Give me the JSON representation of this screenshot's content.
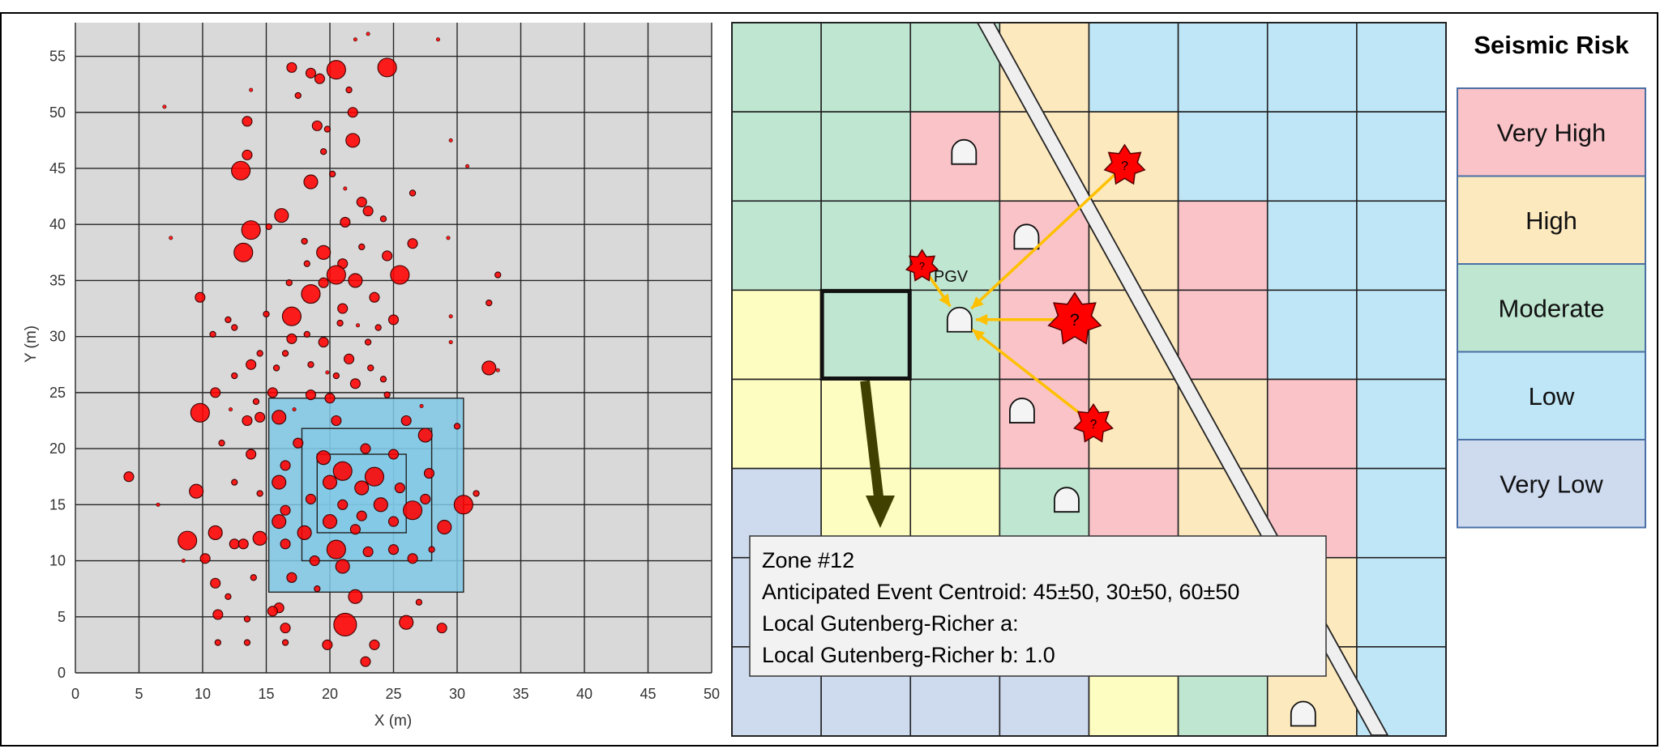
{
  "scatter": {
    "xlabel": "X (m)",
    "ylabel": "Y (m)",
    "xlim": [
      0,
      50
    ],
    "ylim": [
      0,
      58
    ],
    "xticks": [
      0,
      5,
      10,
      15,
      20,
      25,
      30,
      35,
      40,
      45,
      50
    ],
    "yticks": [
      0,
      5,
      10,
      15,
      20,
      25,
      30,
      35,
      40,
      45,
      50,
      55
    ],
    "grid_step": 5,
    "background": "#d9d9d9",
    "marker_color": "#ff0000",
    "overlay_color": "#7fc8e6",
    "overlay_boxes": [
      {
        "x0": 15.2,
        "x1": 30.5,
        "y0": 7.2,
        "y1": 24.5
      },
      {
        "x0": 17.8,
        "x1": 28.0,
        "y0": 10.0,
        "y1": 21.8
      },
      {
        "x0": 19.0,
        "x1": 26.0,
        "y0": 12.5,
        "y1": 19.5
      }
    ]
  },
  "chart_data": {
    "type": "scatter",
    "title": "",
    "xlabel": "X (m)",
    "ylabel": "Y (m)",
    "xlim": [
      0,
      50
    ],
    "ylim": [
      0,
      58
    ],
    "grid": true,
    "points": [
      {
        "x": 17,
        "y": 54,
        "s": 3
      },
      {
        "x": 20.5,
        "y": 53.8,
        "s": 5
      },
      {
        "x": 24.5,
        "y": 54,
        "s": 5
      },
      {
        "x": 18.5,
        "y": 53.5,
        "s": 3
      },
      {
        "x": 19.2,
        "y": 53,
        "s": 3
      },
      {
        "x": 23,
        "y": 57,
        "s": 1
      },
      {
        "x": 22,
        "y": 56.5,
        "s": 1
      },
      {
        "x": 28.5,
        "y": 56.5,
        "s": 1
      },
      {
        "x": 21.5,
        "y": 52,
        "s": 2
      },
      {
        "x": 17.5,
        "y": 51.5,
        "s": 2
      },
      {
        "x": 21.8,
        "y": 50,
        "s": 3
      },
      {
        "x": 13.5,
        "y": 49.2,
        "s": 3
      },
      {
        "x": 19,
        "y": 48.8,
        "s": 3
      },
      {
        "x": 19.8,
        "y": 48.5,
        "s": 2
      },
      {
        "x": 21.8,
        "y": 47.5,
        "s": 4
      },
      {
        "x": 19.5,
        "y": 46.5,
        "s": 2
      },
      {
        "x": 13.5,
        "y": 46.2,
        "s": 3
      },
      {
        "x": 13,
        "y": 44.8,
        "s": 5
      },
      {
        "x": 18.5,
        "y": 43.8,
        "s": 4
      },
      {
        "x": 26.5,
        "y": 42.8,
        "s": 2
      },
      {
        "x": 22.5,
        "y": 42,
        "s": 3
      },
      {
        "x": 23,
        "y": 41.2,
        "s": 3
      },
      {
        "x": 16.2,
        "y": 40.8,
        "s": 4
      },
      {
        "x": 21.2,
        "y": 40.2,
        "s": 3
      },
      {
        "x": 13.8,
        "y": 39.5,
        "s": 5
      },
      {
        "x": 15.2,
        "y": 39.8,
        "s": 2
      },
      {
        "x": 18,
        "y": 38.5,
        "s": 2
      },
      {
        "x": 26.5,
        "y": 38.3,
        "s": 3
      },
      {
        "x": 13.2,
        "y": 37.5,
        "s": 5
      },
      {
        "x": 19.5,
        "y": 37.5,
        "s": 4
      },
      {
        "x": 24.5,
        "y": 37.2,
        "s": 3
      },
      {
        "x": 21,
        "y": 36.5,
        "s": 3
      },
      {
        "x": 20.5,
        "y": 35.5,
        "s": 5
      },
      {
        "x": 25.5,
        "y": 35.5,
        "s": 5
      },
      {
        "x": 22,
        "y": 35,
        "s": 4
      },
      {
        "x": 19.5,
        "y": 34.8,
        "s": 3
      },
      {
        "x": 9.8,
        "y": 33.5,
        "s": 3
      },
      {
        "x": 18.5,
        "y": 33.8,
        "s": 5
      },
      {
        "x": 23.5,
        "y": 33.5,
        "s": 3
      },
      {
        "x": 32.5,
        "y": 33,
        "s": 2
      },
      {
        "x": 21,
        "y": 32.5,
        "s": 3
      },
      {
        "x": 15,
        "y": 32,
        "s": 2
      },
      {
        "x": 17,
        "y": 31.8,
        "s": 5
      },
      {
        "x": 12,
        "y": 31.5,
        "s": 2
      },
      {
        "x": 25,
        "y": 31.5,
        "s": 3
      },
      {
        "x": 12.5,
        "y": 30.8,
        "s": 2
      },
      {
        "x": 10.8,
        "y": 30.2,
        "s": 2
      },
      {
        "x": 17,
        "y": 29.8,
        "s": 3
      },
      {
        "x": 19.5,
        "y": 29.5,
        "s": 3
      },
      {
        "x": 23,
        "y": 29.5,
        "s": 2
      },
      {
        "x": 14.5,
        "y": 28.5,
        "s": 2
      },
      {
        "x": 16.5,
        "y": 28.5,
        "s": 2
      },
      {
        "x": 21.5,
        "y": 28,
        "s": 3
      },
      {
        "x": 13.8,
        "y": 27.5,
        "s": 3
      },
      {
        "x": 18.5,
        "y": 27.5,
        "s": 2
      },
      {
        "x": 23.2,
        "y": 27.2,
        "s": 2
      },
      {
        "x": 12.5,
        "y": 26.5,
        "s": 2
      },
      {
        "x": 20.5,
        "y": 26.5,
        "s": 2
      },
      {
        "x": 32.5,
        "y": 27.2,
        "s": 4
      },
      {
        "x": 22,
        "y": 25.8,
        "s": 3
      },
      {
        "x": 11,
        "y": 25,
        "s": 3
      },
      {
        "x": 15.5,
        "y": 25,
        "s": 3
      },
      {
        "x": 18.5,
        "y": 24.8,
        "s": 3
      },
      {
        "x": 20,
        "y": 24.5,
        "s": 3
      },
      {
        "x": 24.5,
        "y": 24.8,
        "s": 2
      },
      {
        "x": 9.8,
        "y": 23.2,
        "s": 5
      },
      {
        "x": 13.5,
        "y": 22.5,
        "s": 3
      },
      {
        "x": 14.5,
        "y": 22.8,
        "s": 3
      },
      {
        "x": 16,
        "y": 22.8,
        "s": 4
      },
      {
        "x": 20.5,
        "y": 22.5,
        "s": 3
      },
      {
        "x": 26,
        "y": 22.5,
        "s": 3
      },
      {
        "x": 30,
        "y": 22,
        "s": 2
      },
      {
        "x": 27.5,
        "y": 21.2,
        "s": 4
      },
      {
        "x": 11.5,
        "y": 20.5,
        "s": 2
      },
      {
        "x": 17.5,
        "y": 20.5,
        "s": 3
      },
      {
        "x": 22.8,
        "y": 20,
        "s": 3
      },
      {
        "x": 13.8,
        "y": 19.5,
        "s": 3
      },
      {
        "x": 19.5,
        "y": 19.2,
        "s": 4
      },
      {
        "x": 25,
        "y": 19.5,
        "s": 3
      },
      {
        "x": 16.5,
        "y": 18.5,
        "s": 3
      },
      {
        "x": 21,
        "y": 18,
        "s": 5
      },
      {
        "x": 23.5,
        "y": 17.5,
        "s": 5
      },
      {
        "x": 4.2,
        "y": 17.5,
        "s": 3
      },
      {
        "x": 12.5,
        "y": 17,
        "s": 2
      },
      {
        "x": 16,
        "y": 17,
        "s": 4
      },
      {
        "x": 20,
        "y": 17,
        "s": 4
      },
      {
        "x": 27.8,
        "y": 17.8,
        "s": 3
      },
      {
        "x": 22.5,
        "y": 16.5,
        "s": 4
      },
      {
        "x": 25.5,
        "y": 16.5,
        "s": 3
      },
      {
        "x": 9.5,
        "y": 16.2,
        "s": 4
      },
      {
        "x": 14.5,
        "y": 16,
        "s": 2
      },
      {
        "x": 18.5,
        "y": 15.5,
        "s": 3
      },
      {
        "x": 21,
        "y": 15,
        "s": 3
      },
      {
        "x": 24,
        "y": 15,
        "s": 4
      },
      {
        "x": 27.5,
        "y": 15.5,
        "s": 3
      },
      {
        "x": 30.5,
        "y": 15,
        "s": 5
      },
      {
        "x": 31.5,
        "y": 16,
        "s": 2
      },
      {
        "x": 16.5,
        "y": 14.5,
        "s": 3
      },
      {
        "x": 22.5,
        "y": 14,
        "s": 3
      },
      {
        "x": 26.5,
        "y": 14.5,
        "s": 5
      },
      {
        "x": 6.5,
        "y": 15,
        "s": 1
      },
      {
        "x": 16,
        "y": 13.5,
        "s": 4
      },
      {
        "x": 20,
        "y": 13.5,
        "s": 4
      },
      {
        "x": 25,
        "y": 13.5,
        "s": 3
      },
      {
        "x": 29,
        "y": 13,
        "s": 4
      },
      {
        "x": 18,
        "y": 12.5,
        "s": 4
      },
      {
        "x": 22,
        "y": 12.8,
        "s": 3
      },
      {
        "x": 11,
        "y": 12.5,
        "s": 4
      },
      {
        "x": 14.5,
        "y": 12,
        "s": 4
      },
      {
        "x": 8.8,
        "y": 11.8,
        "s": 5
      },
      {
        "x": 12.5,
        "y": 11.5,
        "s": 3
      },
      {
        "x": 13.2,
        "y": 11.5,
        "s": 3
      },
      {
        "x": 16.5,
        "y": 11.5,
        "s": 3
      },
      {
        "x": 20.5,
        "y": 11,
        "s": 5
      },
      {
        "x": 25,
        "y": 11,
        "s": 3
      },
      {
        "x": 28,
        "y": 11,
        "s": 2
      },
      {
        "x": 23,
        "y": 10.8,
        "s": 3
      },
      {
        "x": 10.2,
        "y": 10.2,
        "s": 3
      },
      {
        "x": 18.8,
        "y": 10,
        "s": 3
      },
      {
        "x": 26.5,
        "y": 10.2,
        "s": 3
      },
      {
        "x": 21,
        "y": 9.5,
        "s": 4
      },
      {
        "x": 14,
        "y": 8.5,
        "s": 2
      },
      {
        "x": 17,
        "y": 8.5,
        "s": 3
      },
      {
        "x": 11,
        "y": 8,
        "s": 3
      },
      {
        "x": 19,
        "y": 7.5,
        "s": 2
      },
      {
        "x": 12,
        "y": 6.8,
        "s": 2
      },
      {
        "x": 22,
        "y": 6.8,
        "s": 4
      },
      {
        "x": 27,
        "y": 6.3,
        "s": 2
      },
      {
        "x": 16,
        "y": 5.8,
        "s": 3
      },
      {
        "x": 15.5,
        "y": 5.5,
        "s": 3
      },
      {
        "x": 11.2,
        "y": 5.2,
        "s": 3
      },
      {
        "x": 13.5,
        "y": 4.8,
        "s": 2
      },
      {
        "x": 21.2,
        "y": 4.3,
        "s": 6
      },
      {
        "x": 26,
        "y": 4.5,
        "s": 4
      },
      {
        "x": 28.8,
        "y": 4,
        "s": 3
      },
      {
        "x": 16.5,
        "y": 4,
        "s": 3
      },
      {
        "x": 11.2,
        "y": 2.7,
        "s": 2
      },
      {
        "x": 13.5,
        "y": 2.7,
        "s": 2
      },
      {
        "x": 16.5,
        "y": 2.7,
        "s": 2
      },
      {
        "x": 19.8,
        "y": 2.5,
        "s": 3
      },
      {
        "x": 23.5,
        "y": 2.5,
        "s": 3
      },
      {
        "x": 22.8,
        "y": 1,
        "s": 3
      },
      {
        "x": 7,
        "y": 50.5,
        "s": 1
      },
      {
        "x": 13.8,
        "y": 52,
        "s": 1
      },
      {
        "x": 29.5,
        "y": 47.5,
        "s": 1
      },
      {
        "x": 30.8,
        "y": 45.2,
        "s": 1
      },
      {
        "x": 7.5,
        "y": 38.8,
        "s": 1
      },
      {
        "x": 29.3,
        "y": 38.8,
        "s": 1
      },
      {
        "x": 33.2,
        "y": 35.5,
        "s": 2
      },
      {
        "x": 29.5,
        "y": 31.8,
        "s": 1
      },
      {
        "x": 29.5,
        "y": 29.5,
        "s": 1
      },
      {
        "x": 33.2,
        "y": 27,
        "s": 1
      },
      {
        "x": 8.5,
        "y": 10,
        "s": 1
      },
      {
        "x": 18.2,
        "y": 36.5,
        "s": 2
      },
      {
        "x": 22.5,
        "y": 38,
        "s": 2
      },
      {
        "x": 24.2,
        "y": 40.5,
        "s": 2
      },
      {
        "x": 20.2,
        "y": 44.5,
        "s": 2
      },
      {
        "x": 21.2,
        "y": 43.2,
        "s": 1
      },
      {
        "x": 16.8,
        "y": 34.8,
        "s": 2
      },
      {
        "x": 23.8,
        "y": 30.8,
        "s": 2
      },
      {
        "x": 18.2,
        "y": 30.2,
        "s": 2
      },
      {
        "x": 20.8,
        "y": 31.2,
        "s": 2
      },
      {
        "x": 22.2,
        "y": 31,
        "s": 1
      },
      {
        "x": 15.8,
        "y": 27.2,
        "s": 2
      },
      {
        "x": 19.8,
        "y": 26.8,
        "s": 1
      },
      {
        "x": 24.2,
        "y": 26.2,
        "s": 2
      },
      {
        "x": 14.2,
        "y": 24.2,
        "s": 2
      },
      {
        "x": 17.2,
        "y": 23.5,
        "s": 1
      },
      {
        "x": 27.2,
        "y": 23.8,
        "s": 1
      },
      {
        "x": 12.2,
        "y": 23.5,
        "s": 1
      }
    ]
  },
  "zone_map": {
    "rows": [
      [
        "moderate",
        "moderate",
        "moderate",
        "high",
        "low",
        "low",
        "low",
        "low"
      ],
      [
        "moderate",
        "moderate",
        "very_high",
        "high",
        "high",
        "low",
        "low",
        "low"
      ],
      [
        "moderate",
        "moderate",
        "moderate",
        "very_high",
        "high",
        "very_high",
        "low",
        "low"
      ],
      [
        "yellow",
        "moderate",
        "moderate",
        "very_high",
        "high",
        "very_high",
        "low",
        "low"
      ],
      [
        "yellow",
        "yellow",
        "moderate",
        "very_high",
        "high",
        "high",
        "very_high",
        "low"
      ],
      [
        "very_low",
        "yellow",
        "yellow",
        "moderate",
        "very_high",
        "high",
        "very_high",
        "low"
      ],
      [
        "very_low",
        "very_low",
        "very_low",
        "very_low",
        "very_low",
        "high",
        "high",
        "low"
      ],
      [
        "very_low",
        "very_low",
        "very_low",
        "very_low",
        "yellow",
        "moderate",
        "high",
        "low"
      ]
    ],
    "colors": {
      "very_high": "#f9c3c8",
      "high": "#fde9be",
      "moderate": "#bfe6d1",
      "low": "#bfe6f7",
      "very_low": "#cedbef",
      "yellow": "#fdfcc1"
    },
    "selected_cell": {
      "row": 3,
      "col": 1
    },
    "pgv_label": "PGV",
    "event_label": "?",
    "events": [
      {
        "cx": 2.13,
        "cy": 2.73,
        "scale": 0.9
      },
      {
        "cx": 4.4,
        "cy": 1.6,
        "scale": 1.15
      },
      {
        "cx": 3.84,
        "cy": 3.33,
        "scale": 1.5
      },
      {
        "cx": 4.05,
        "cy": 4.5,
        "scale": 1.1
      }
    ],
    "receiver": {
      "cx": 2.55,
      "cy": 3.33
    },
    "stations": [
      {
        "cx": 2.6,
        "cy": 1.45
      },
      {
        "cx": 3.3,
        "cy": 2.4
      },
      {
        "cx": 3.25,
        "cy": 4.35
      },
      {
        "cx": 3.75,
        "cy": 5.35
      },
      {
        "cx": 6.4,
        "cy": 7.75
      }
    ],
    "arrow_color": "#ffc000",
    "zone_arrow_color": "#404000"
  },
  "info_box": {
    "line1": "Zone #12",
    "line2": "Anticipated Event Centroid:  45±50, 30±50, 60±50",
    "line3": "Local Gutenberg-Richer a:",
    "line4": "Local Gutenberg-Richer b: 1.0"
  },
  "legend": {
    "title": "Seismic Risk",
    "items": [
      {
        "label": "Very High",
        "color": "#f9c3c8"
      },
      {
        "label": "High",
        "color": "#fde9be"
      },
      {
        "label": "Moderate",
        "color": "#bfe6d1"
      },
      {
        "label": "Low",
        "color": "#bfe6f7"
      },
      {
        "label": "Very Low",
        "color": "#cedbef"
      }
    ]
  }
}
